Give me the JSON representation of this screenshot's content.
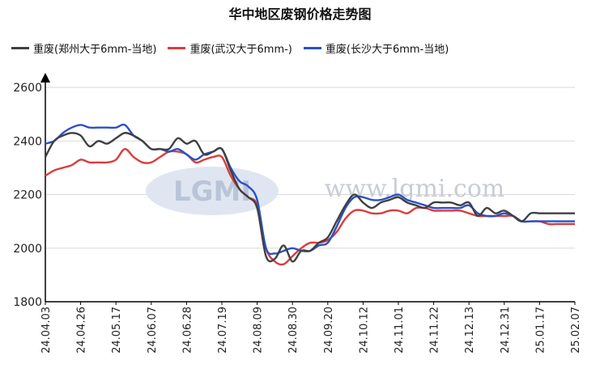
{
  "chart_data": {
    "type": "line",
    "title": "华中地区废钢价格走势图",
    "xlabel": "",
    "ylabel": "",
    "ylim": [
      1800,
      2600
    ],
    "yticks": [
      1800,
      2000,
      2200,
      2400,
      2600
    ],
    "grid": true,
    "legend_position": "top-left",
    "x_tick_labels": [
      "24.04.03",
      "24.04.26",
      "24.05.17",
      "24.06.07",
      "24.06.28",
      "24.07.19",
      "24.08.09",
      "24.08.30",
      "24.09.20",
      "24.10.12",
      "24.11.01",
      "24.11.22",
      "24.12.13",
      "24.12.31",
      "25.01.17",
      "25.02.07"
    ],
    "x": [
      "24.04.03",
      "24.04.08",
      "24.04.13",
      "24.04.18",
      "24.04.26",
      "24.05.01",
      "24.05.06",
      "24.05.11",
      "24.05.17",
      "24.05.22",
      "24.05.27",
      "24.06.01",
      "24.06.07",
      "24.06.12",
      "24.06.17",
      "24.06.22",
      "24.06.28",
      "24.07.03",
      "24.07.08",
      "24.07.13",
      "24.07.19",
      "24.07.24",
      "24.07.29",
      "24.08.03",
      "24.08.09",
      "24.08.14",
      "24.08.19",
      "24.08.24",
      "24.08.30",
      "24.09.04",
      "24.09.09",
      "24.09.14",
      "24.09.20",
      "24.09.25",
      "24.09.30",
      "24.10.06",
      "24.10.12",
      "24.10.17",
      "24.10.22",
      "24.10.27",
      "24.11.01",
      "24.11.06",
      "24.11.11",
      "24.11.16",
      "24.11.22",
      "24.11.27",
      "24.12.02",
      "24.12.07",
      "24.12.13",
      "24.12.18",
      "24.12.23",
      "24.12.27",
      "24.12.31",
      "25.01.05",
      "25.01.10",
      "25.01.13",
      "25.01.17",
      "25.01.22",
      "25.01.27",
      "25.02.02",
      "25.02.07"
    ],
    "series": [
      {
        "name": "重废(郑州大于6mm-当地)",
        "color": "#404040",
        "values": [
          2340,
          2400,
          2420,
          2430,
          2420,
          2380,
          2400,
          2390,
          2410,
          2430,
          2420,
          2400,
          2370,
          2370,
          2370,
          2410,
          2390,
          2400,
          2350,
          2360,
          2370,
          2290,
          2220,
          2190,
          2150,
          1970,
          1960,
          2010,
          1950,
          1990,
          1990,
          2020,
          2040,
          2100,
          2160,
          2200,
          2170,
          2150,
          2170,
          2180,
          2190,
          2170,
          2160,
          2150,
          2170,
          2170,
          2170,
          2160,
          2170,
          2120,
          2150,
          2130,
          2140,
          2120,
          2100,
          2130,
          2130,
          2130,
          2130,
          2130,
          2130
        ]
      },
      {
        "name": "重废(武汉大于6mm-)",
        "color": "#dc3b3b",
        "values": [
          2270,
          2290,
          2300,
          2310,
          2330,
          2320,
          2320,
          2320,
          2330,
          2370,
          2340,
          2320,
          2320,
          2340,
          2360,
          2360,
          2350,
          2320,
          2330,
          2340,
          2340,
          2270,
          2220,
          2190,
          2160,
          2000,
          1950,
          1940,
          1970,
          2000,
          2020,
          2020,
          2030,
          2060,
          2110,
          2140,
          2140,
          2130,
          2130,
          2140,
          2140,
          2130,
          2150,
          2150,
          2140,
          2140,
          2140,
          2140,
          2130,
          2120,
          2120,
          2120,
          2120,
          2120,
          2100,
          2100,
          2100,
          2090,
          2090,
          2090,
          2090
        ]
      },
      {
        "name": "重废(长沙大于6mm-当地)",
        "color": "#2a50c8",
        "values": [
          2390,
          2400,
          2430,
          2450,
          2460,
          2450,
          2450,
          2450,
          2450,
          2460,
          2420,
          2400,
          2370,
          2370,
          2360,
          2370,
          2350,
          2330,
          2350,
          2360,
          2370,
          2300,
          2250,
          2230,
          2180,
          2000,
          1980,
          1990,
          2000,
          1990,
          1990,
          2010,
          2020,
          2080,
          2150,
          2190,
          2190,
          2180,
          2180,
          2190,
          2200,
          2180,
          2170,
          2160,
          2150,
          2150,
          2150,
          2150,
          2160,
          2130,
          2120,
          2120,
          2130,
          2120,
          2100,
          2100,
          2100,
          2100,
          2100,
          2100,
          2100
        ]
      }
    ]
  },
  "watermark": {
    "logo": "LGMI",
    "url": "www.lgmi.com"
  }
}
